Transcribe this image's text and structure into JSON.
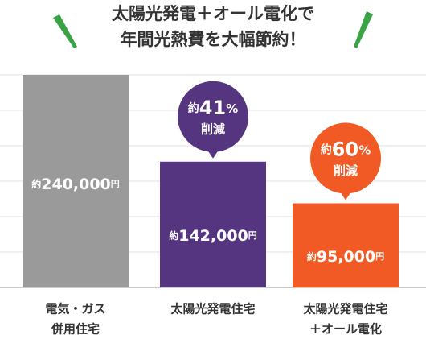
{
  "chart_data": {
    "type": "bar",
    "title": [
      "太陽光発電＋オール電化で",
      "年間光熱費を大幅節約！"
    ],
    "categories": [
      [
        "電気・ガス",
        "併用住宅"
      ],
      [
        "太陽光発電住宅"
      ],
      [
        "太陽光発電住宅",
        "＋オール電化"
      ]
    ],
    "values": [
      240000,
      142000,
      95000
    ],
    "value_labels": [
      "約240,000円",
      "約142,000円",
      "約95,000円"
    ],
    "colors": [
      "#9a9a9a",
      "#553480",
      "#f15a24"
    ],
    "annotations": [
      null,
      {
        "label": "約41%",
        "sub": "削減"
      },
      {
        "label": "約60%",
        "sub": "削減"
      }
    ],
    "ylim": [
      0,
      240000
    ],
    "yticks": [
      0,
      40000,
      80000,
      120000,
      160000,
      200000,
      240000
    ],
    "grid": true
  }
}
